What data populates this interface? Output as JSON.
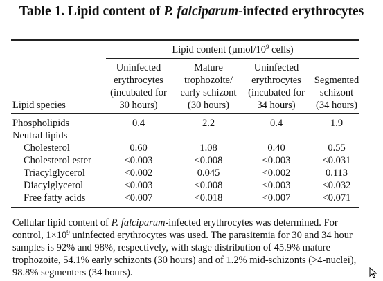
{
  "title": {
    "pre": "Table 1. Lipid content of ",
    "italic": "P. falciparum",
    "post": "-infected erythrocytes"
  },
  "header": {
    "group_label_pre": "Lipid content (µmol/10",
    "group_label_sup": "9",
    "group_label_post": " cells)",
    "col0": "Lipid species",
    "columns": [
      [
        "Uninfected",
        "erythrocytes",
        "(incubated for",
        "30 hours)"
      ],
      [
        "Mature",
        "trophozoite/",
        "early schizont",
        "(30 hours)"
      ],
      [
        "Uninfected",
        "erythrocytes",
        "(incubated for",
        "34 hours)"
      ],
      [
        "Segmented",
        "schizont",
        "(34 hours)"
      ]
    ]
  },
  "rows": [
    {
      "label": "Phospholipids",
      "values": [
        "0.4",
        "2.2",
        "0.4",
        "1.9"
      ]
    },
    {
      "label": "Neutral lipids",
      "values": [
        "",
        "",
        "",
        ""
      ]
    },
    {
      "label": "Cholesterol",
      "values": [
        "0.60",
        "1.08",
        "0.40",
        "0.55"
      ]
    },
    {
      "label": "Cholesterol ester",
      "values": [
        "<0.003",
        "<0.008",
        "<0.003",
        "<0.031"
      ]
    },
    {
      "label": "Triacylglycerol",
      "values": [
        "<0.002",
        "0.045",
        "<0.002",
        "0.113"
      ]
    },
    {
      "label": "Diacylglycerol",
      "values": [
        "<0.003",
        "<0.008",
        "<0.003",
        "<0.032"
      ]
    },
    {
      "label": "Free fatty acids",
      "values": [
        "<0.007",
        "<0.018",
        "<0.007",
        "<0.071"
      ]
    }
  ],
  "footnote": {
    "p1": "Cellular lipid content of ",
    "p1_italic": "P. falciparum",
    "p2": "-infected erythrocytes was determined. For control, 1×10",
    "p2_sup": "9",
    "p3": " uninfected erythrocytes was used. The parasitemia for 30 and 34 hour samples is 92% and 98%, respectively, with stage distribution of 45.9% mature trophozoite, 54.1% early schizonts (30 hours) and of 1.2% mid-schizonts (>4-nuclei), 98.8% segmenters (34 hours)."
  },
  "icons": {
    "cursor": "mouse-pointer-icon"
  }
}
